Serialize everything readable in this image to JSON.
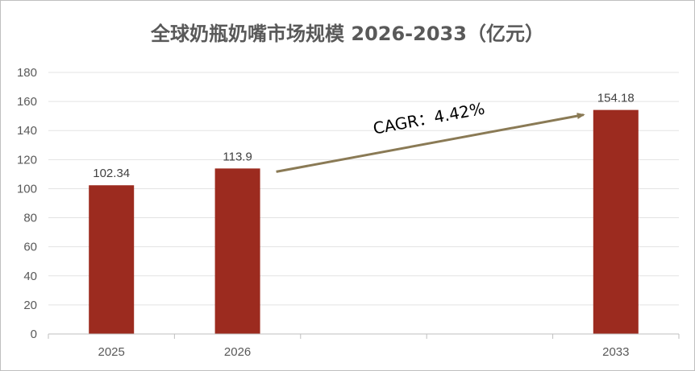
{
  "chart_data": {
    "type": "bar",
    "title": "全球奶瓶奶嘴市场规模 2026-2033（亿元）",
    "categories": [
      "2025",
      "2026",
      "",
      "",
      "2033"
    ],
    "values": [
      102.34,
      113.9,
      null,
      null,
      154.18
    ],
    "data_labels": [
      "102.34",
      "113.9",
      "",
      "",
      "154.18"
    ],
    "yticks": [
      "0",
      "20",
      "40",
      "60",
      "80",
      "100",
      "120",
      "140",
      "160",
      "180"
    ],
    "ylim": [
      0,
      180
    ],
    "grid": true,
    "bar_color": "#9c2b1f",
    "annotation": {
      "text": "CAGR：4.42%",
      "from_category": "2026",
      "to_category": "2033",
      "arrow_color": "#8a7a55"
    }
  }
}
